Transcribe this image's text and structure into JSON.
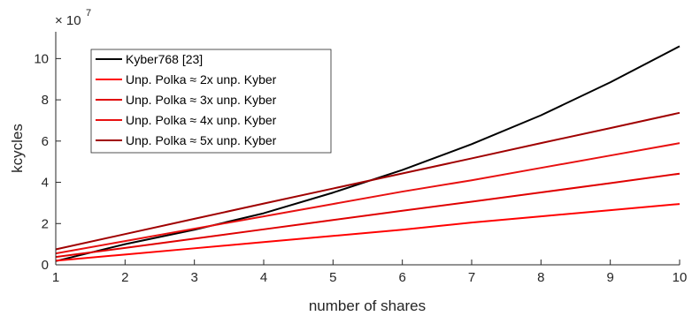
{
  "chart_data": {
    "type": "line",
    "xlabel": "number of shares",
    "ylabel": "kcycles",
    "exponent_base": "× 10",
    "exponent_power": "7",
    "xlim": [
      1,
      10
    ],
    "ylim": [
      0,
      11.3
    ],
    "xticks": [
      "1",
      "2",
      "3",
      "4",
      "5",
      "6",
      "7",
      "8",
      "9",
      "10"
    ],
    "yticks": [
      "0",
      "2",
      "4",
      "6",
      "8",
      "10"
    ],
    "grid": false,
    "legend_position": "top-left",
    "x": [
      1,
      2,
      3,
      4,
      5,
      6,
      7,
      8,
      9,
      10
    ],
    "series": [
      {
        "name": "Kyber768 [23]",
        "color": "#000000",
        "values": [
          0.18,
          1.0,
          1.7,
          2.5,
          3.5,
          4.6,
          5.85,
          7.25,
          8.85,
          10.6
        ]
      },
      {
        "name": "Unp. Polka ≈ 2x unp. Kyber",
        "color": "#ff0000",
        "values": [
          0.2,
          0.5,
          0.8,
          1.1,
          1.4,
          1.7,
          2.05,
          2.35,
          2.65,
          2.95
        ]
      },
      {
        "name": "Unp. Polka ≈ 3x unp. Kyber",
        "color": "#e00000",
        "values": [
          0.38,
          0.82,
          1.27,
          1.72,
          2.17,
          2.62,
          3.06,
          3.51,
          3.96,
          4.42
        ]
      },
      {
        "name": "Unp. Polka ≈ 4x unp. Kyber",
        "color": "#e81010",
        "values": [
          0.55,
          1.15,
          1.75,
          2.35,
          2.95,
          3.55,
          4.1,
          4.7,
          5.3,
          5.9
        ]
      },
      {
        "name": "Unp. Polka ≈ 5x unp. Kyber",
        "color": "#a00000",
        "values": [
          0.75,
          1.49,
          2.23,
          2.97,
          3.7,
          4.43,
          5.16,
          5.9,
          6.63,
          7.37
        ]
      }
    ]
  }
}
